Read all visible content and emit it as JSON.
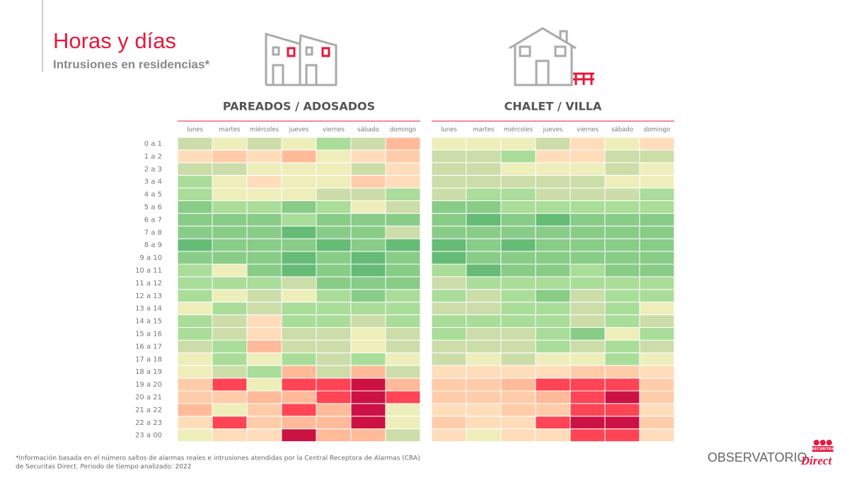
{
  "header": {
    "title": "Horas y días",
    "subtitle": "Intrusiones en residencias*"
  },
  "hours": [
    "0 a 1",
    "1 a 2",
    "2 a 3",
    "3 a 4",
    "4 a 5",
    "5 a 6",
    "6 a 7",
    "7 a 8",
    "8 a 9",
    "9 a 10",
    "10 a 11",
    "11 a 12",
    "12 a 13",
    "13 a 14",
    "14 a 15",
    "15 a 16",
    "16 a 17",
    "17 a 18",
    "18 a 19",
    "19 a 20",
    "20 a 21",
    "21 a 22",
    "22 a 23",
    "23 a 00"
  ],
  "panels": [
    {
      "title": "PAREADOS / ADOSADOS",
      "days": [
        "lunes",
        "martes",
        "miércoles",
        "jueves",
        "viernes",
        "sábado",
        "domingo"
      ],
      "cells": [
        [
          "#cda",
          "#eeb",
          "#cda",
          "#eeb",
          "#ad9",
          "#cda",
          "#fb9"
        ],
        [
          "#fdb",
          "#fca",
          "#fdb",
          "#fb9",
          "#eeb",
          "#fdb",
          "#fca"
        ],
        [
          "#cda",
          "#cda",
          "#eeb",
          "#eeb",
          "#eeb",
          "#cda",
          "#fdb"
        ],
        [
          "#ad9",
          "#eeb",
          "#fdb",
          "#eeb",
          "#eeb",
          "#fca",
          "#fdb"
        ],
        [
          "#ad9",
          "#eeb",
          "#eeb",
          "#eeb",
          "#cda",
          "#cda",
          "#ad9"
        ],
        [
          "#8c8",
          "#ad9",
          "#ad9",
          "#8c8",
          "#ad9",
          "#eeb",
          "#cda"
        ],
        [
          "#8c8",
          "#8c8",
          "#8c8",
          "#ad9",
          "#8c8",
          "#8c8",
          "#8c8"
        ],
        [
          "#8c8",
          "#8c8",
          "#8c8",
          "#6b7",
          "#8c8",
          "#8c8",
          "#cda"
        ],
        [
          "#6b7",
          "#8c8",
          "#8c8",
          "#8c8",
          "#6b7",
          "#8c8",
          "#6b7"
        ],
        [
          "#8c8",
          "#8c8",
          "#8c8",
          "#6b7",
          "#8c8",
          "#6b7",
          "#8c8"
        ],
        [
          "#ad9",
          "#eeb",
          "#8c8",
          "#6b7",
          "#8c8",
          "#6b7",
          "#8c8"
        ],
        [
          "#ad9",
          "#ad9",
          "#ad9",
          "#cda",
          "#8c8",
          "#8c8",
          "#8c8"
        ],
        [
          "#ad9",
          "#eeb",
          "#cda",
          "#eeb",
          "#ad9",
          "#8c8",
          "#ad9"
        ],
        [
          "#eeb",
          "#ad9",
          "#cda",
          "#ad9",
          "#ad9",
          "#ad9",
          "#ad9"
        ],
        [
          "#ad9",
          "#cda",
          "#fdb",
          "#ad9",
          "#ad9",
          "#cda",
          "#ad9"
        ],
        [
          "#ad9",
          "#cda",
          "#fdb",
          "#cda",
          "#cda",
          "#eeb",
          "#cda"
        ],
        [
          "#cda",
          "#ad9",
          "#fb9",
          "#cda",
          "#cda",
          "#eeb",
          "#cda"
        ],
        [
          "#eeb",
          "#ad9",
          "#eeb",
          "#ad9",
          "#cda",
          "#ad9",
          "#eeb"
        ],
        [
          "#eeb",
          "#cda",
          "#ad9",
          "#fb9",
          "#cda",
          "#fb9",
          "#cda"
        ],
        [
          "#fca",
          "#f45",
          "#eeb",
          "#f45",
          "#f45",
          "#c14",
          "#fb9"
        ],
        [
          "#fca",
          "#fca",
          "#fb9",
          "#fb9",
          "#f45",
          "#c14",
          "#f45"
        ],
        [
          "#fb9",
          "#eeb",
          "#fca",
          "#f45",
          "#fb9",
          "#c14",
          "#eeb"
        ],
        [
          "#fdb",
          "#f45",
          "#fca",
          "#fb9",
          "#fb9",
          "#c14",
          "#eeb"
        ],
        [
          "#eeb",
          "#fdb",
          "#fdb",
          "#c14",
          "#fb9",
          "#fb9",
          "#cda"
        ]
      ]
    },
    {
      "title": "CHALET / VILLA",
      "days": [
        "lunes",
        "martes",
        "miércoles",
        "jueves",
        "viernes",
        "sábado",
        "domingo"
      ],
      "cells": [
        [
          "#eeb",
          "#eeb",
          "#eeb",
          "#cda",
          "#fdb",
          "#eeb",
          "#fdb"
        ],
        [
          "#cda",
          "#cda",
          "#ad9",
          "#fdb",
          "#fdb",
          "#cda",
          "#cda"
        ],
        [
          "#cda",
          "#cda",
          "#eeb",
          "#eeb",
          "#eeb",
          "#cda",
          "#eeb"
        ],
        [
          "#cda",
          "#cda",
          "#cda",
          "#cda",
          "#cda",
          "#eeb",
          "#eeb"
        ],
        [
          "#cda",
          "#ad9",
          "#ad9",
          "#cda",
          "#cda",
          "#cda",
          "#ad9"
        ],
        [
          "#8c8",
          "#8c8",
          "#ad9",
          "#ad9",
          "#ad9",
          "#ad9",
          "#ad9"
        ],
        [
          "#8c8",
          "#6b7",
          "#8c8",
          "#6b7",
          "#8c8",
          "#8c8",
          "#8c8"
        ],
        [
          "#8c8",
          "#8c8",
          "#8c8",
          "#8c8",
          "#8c8",
          "#8c8",
          "#8c8"
        ],
        [
          "#6b7",
          "#8c8",
          "#6b7",
          "#8c8",
          "#8c8",
          "#8c8",
          "#8c8"
        ],
        [
          "#6b7",
          "#8c8",
          "#8c8",
          "#8c8",
          "#8c8",
          "#8c8",
          "#8c8"
        ],
        [
          "#ad9",
          "#6b7",
          "#8c8",
          "#8c8",
          "#ad9",
          "#8c8",
          "#8c8"
        ],
        [
          "#cda",
          "#ad9",
          "#ad9",
          "#ad9",
          "#ad9",
          "#ad9",
          "#ad9"
        ],
        [
          "#ad9",
          "#cda",
          "#ad9",
          "#8c8",
          "#cda",
          "#ad9",
          "#ad9"
        ],
        [
          "#cda",
          "#cda",
          "#ad9",
          "#ad9",
          "#cda",
          "#ad9",
          "#eeb"
        ],
        [
          "#ad9",
          "#ad9",
          "#ad9",
          "#ad9",
          "#cda",
          "#ad9",
          "#cda"
        ],
        [
          "#ad9",
          "#cda",
          "#cda",
          "#ad9",
          "#8c8",
          "#eeb",
          "#ad9"
        ],
        [
          "#cda",
          "#cda",
          "#cda",
          "#ad9",
          "#cda",
          "#ad9",
          "#cda"
        ],
        [
          "#cda",
          "#eeb",
          "#cda",
          "#eeb",
          "#eeb",
          "#ad9",
          "#eeb"
        ],
        [
          "#fdb",
          "#fdb",
          "#fdb",
          "#fdb",
          "#fca",
          "#fca",
          "#fdb"
        ],
        [
          "#fca",
          "#fca",
          "#fb9",
          "#f45",
          "#f45",
          "#f45",
          "#fca"
        ],
        [
          "#fca",
          "#fca",
          "#fca",
          "#fb9",
          "#f45",
          "#c14",
          "#fca"
        ],
        [
          "#fdb",
          "#fdb",
          "#fca",
          "#fca",
          "#f45",
          "#f45",
          "#fdb"
        ],
        [
          "#fca",
          "#fdb",
          "#fdb",
          "#f45",
          "#c14",
          "#c14",
          "#fca"
        ],
        [
          "#fdb",
          "#eeb",
          "#fdb",
          "#fdb",
          "#f45",
          "#f45",
          "#fdb"
        ]
      ]
    }
  ],
  "footnote": [
    "*Información basada en el número saltos de alarmas reales e intrusiones atendidas por la Central Receptora de Alarmas (CRA)",
    "de Securitas Direct. Periodo de tiempo analizado: 2022"
  ],
  "brand": {
    "observatorio": "OBSERVATORIO",
    "securitas": "SECURITAS",
    "direct": "Direct"
  }
}
